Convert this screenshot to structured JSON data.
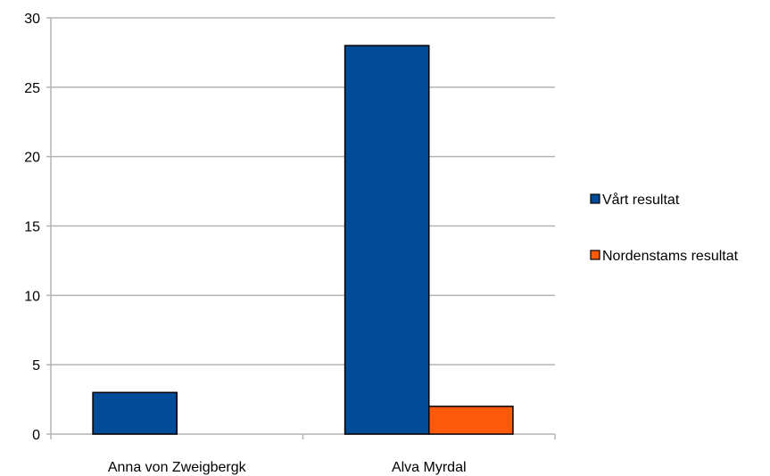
{
  "chart_data": {
    "type": "bar",
    "categories": [
      "Anna von Zweigbergk",
      "Alva Myrdal"
    ],
    "series": [
      {
        "name": "Vårt resultat",
        "values": [
          3,
          28
        ],
        "color": "#004C99"
      },
      {
        "name": "Nordenstams resultat",
        "values": [
          0,
          2
        ],
        "color": "#FF5A0A"
      }
    ],
    "title": "",
    "xlabel": "",
    "ylabel": "",
    "ylim": [
      0,
      30
    ],
    "yticks": [
      0,
      5,
      10,
      15,
      20,
      25,
      30
    ],
    "grid": true,
    "legend_position": "right"
  }
}
